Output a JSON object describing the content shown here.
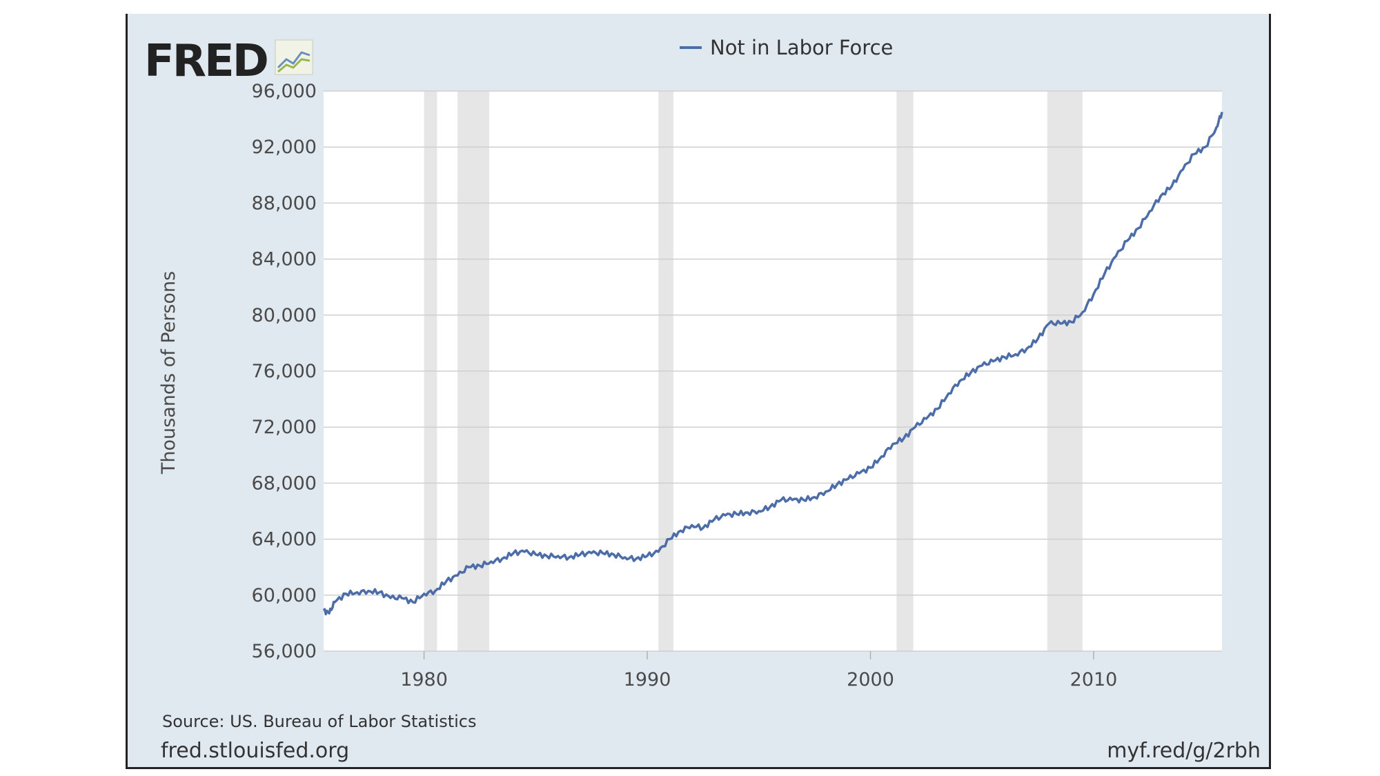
{
  "logo": {
    "text": "FRED",
    "mark": "fred-chart-icon"
  },
  "footer": {
    "source": "Source: US. Bureau of Labor Statistics",
    "site": "fred.stlouisfed.org",
    "short_link": "myf.red/g/2rbh"
  },
  "colors": {
    "line": "#4c6da8",
    "recession": "#e6e6e6",
    "panel": "#e1e9f0",
    "grid": "#cfcfcf"
  },
  "chart_data": {
    "type": "line",
    "title": "",
    "xlabel": "",
    "ylabel": "Thousands of Persons",
    "xlim": [
      1975.5,
      2015.75
    ],
    "ylim": [
      56000,
      96000
    ],
    "y_ticks": [
      56000,
      60000,
      64000,
      68000,
      72000,
      76000,
      80000,
      84000,
      88000,
      92000,
      96000
    ],
    "y_tick_labels": [
      "56,000",
      "60,000",
      "64,000",
      "68,000",
      "72,000",
      "76,000",
      "80,000",
      "84,000",
      "88,000",
      "92,000",
      "96,000"
    ],
    "x_ticks": [
      1980,
      1990,
      2000,
      2010
    ],
    "x_tick_labels": [
      "1980",
      "1990",
      "2000",
      "2010"
    ],
    "grid": true,
    "legend": {
      "placement": "top-center"
    },
    "recessions": [
      [
        1980.0,
        1980.58
      ],
      [
        1981.5,
        1982.92
      ],
      [
        1990.5,
        1991.17
      ],
      [
        2001.17,
        2001.92
      ],
      [
        2007.92,
        2009.5
      ]
    ],
    "series": [
      {
        "name": "Not in Labor Force",
        "x": [
          1975.5,
          1975.75,
          1976.0,
          1976.5,
          1977.0,
          1977.5,
          1978.0,
          1978.5,
          1979.0,
          1979.5,
          1980.0,
          1980.5,
          1981.0,
          1981.5,
          1982.0,
          1982.5,
          1983.0,
          1983.5,
          1984.0,
          1984.5,
          1985.0,
          1985.5,
          1986.0,
          1986.5,
          1987.0,
          1987.5,
          1988.0,
          1988.5,
          1989.0,
          1989.5,
          1990.0,
          1990.5,
          1991.0,
          1991.5,
          1992.0,
          1992.5,
          1993.0,
          1993.5,
          1994.0,
          1994.5,
          1995.0,
          1995.5,
          1996.0,
          1996.5,
          1997.0,
          1997.5,
          1998.0,
          1998.5,
          1999.0,
          1999.5,
          2000.0,
          2000.5,
          2001.0,
          2001.5,
          2002.0,
          2002.5,
          2003.0,
          2003.5,
          2004.0,
          2004.5,
          2005.0,
          2005.5,
          2006.0,
          2006.5,
          2007.0,
          2007.5,
          2008.0,
          2008.5,
          2009.0,
          2009.5,
          2010.0,
          2010.5,
          2011.0,
          2011.5,
          2012.0,
          2012.5,
          2013.0,
          2013.5,
          2014.0,
          2014.5,
          2015.0,
          2015.5,
          2015.75
        ],
        "values": [
          58900,
          58700,
          59500,
          60100,
          60200,
          60300,
          60200,
          59800,
          59800,
          59500,
          60100,
          60300,
          61000,
          61400,
          62000,
          62100,
          62400,
          62600,
          63000,
          63100,
          62900,
          62800,
          62800,
          62700,
          62900,
          63000,
          63000,
          62900,
          62700,
          62600,
          62800,
          63100,
          64000,
          64600,
          65000,
          64800,
          65400,
          65700,
          65800,
          65900,
          66000,
          66300,
          66800,
          66800,
          66800,
          67000,
          67400,
          67900,
          68300,
          68700,
          69100,
          69900,
          70800,
          71200,
          72000,
          72600,
          73300,
          74400,
          75300,
          75900,
          76400,
          76700,
          77000,
          77200,
          77600,
          78300,
          79400,
          79400,
          79500,
          80200,
          81500,
          83000,
          84200,
          85300,
          86200,
          87400,
          88500,
          89200,
          90400,
          91500,
          92000,
          93400,
          94500
        ]
      }
    ]
  }
}
